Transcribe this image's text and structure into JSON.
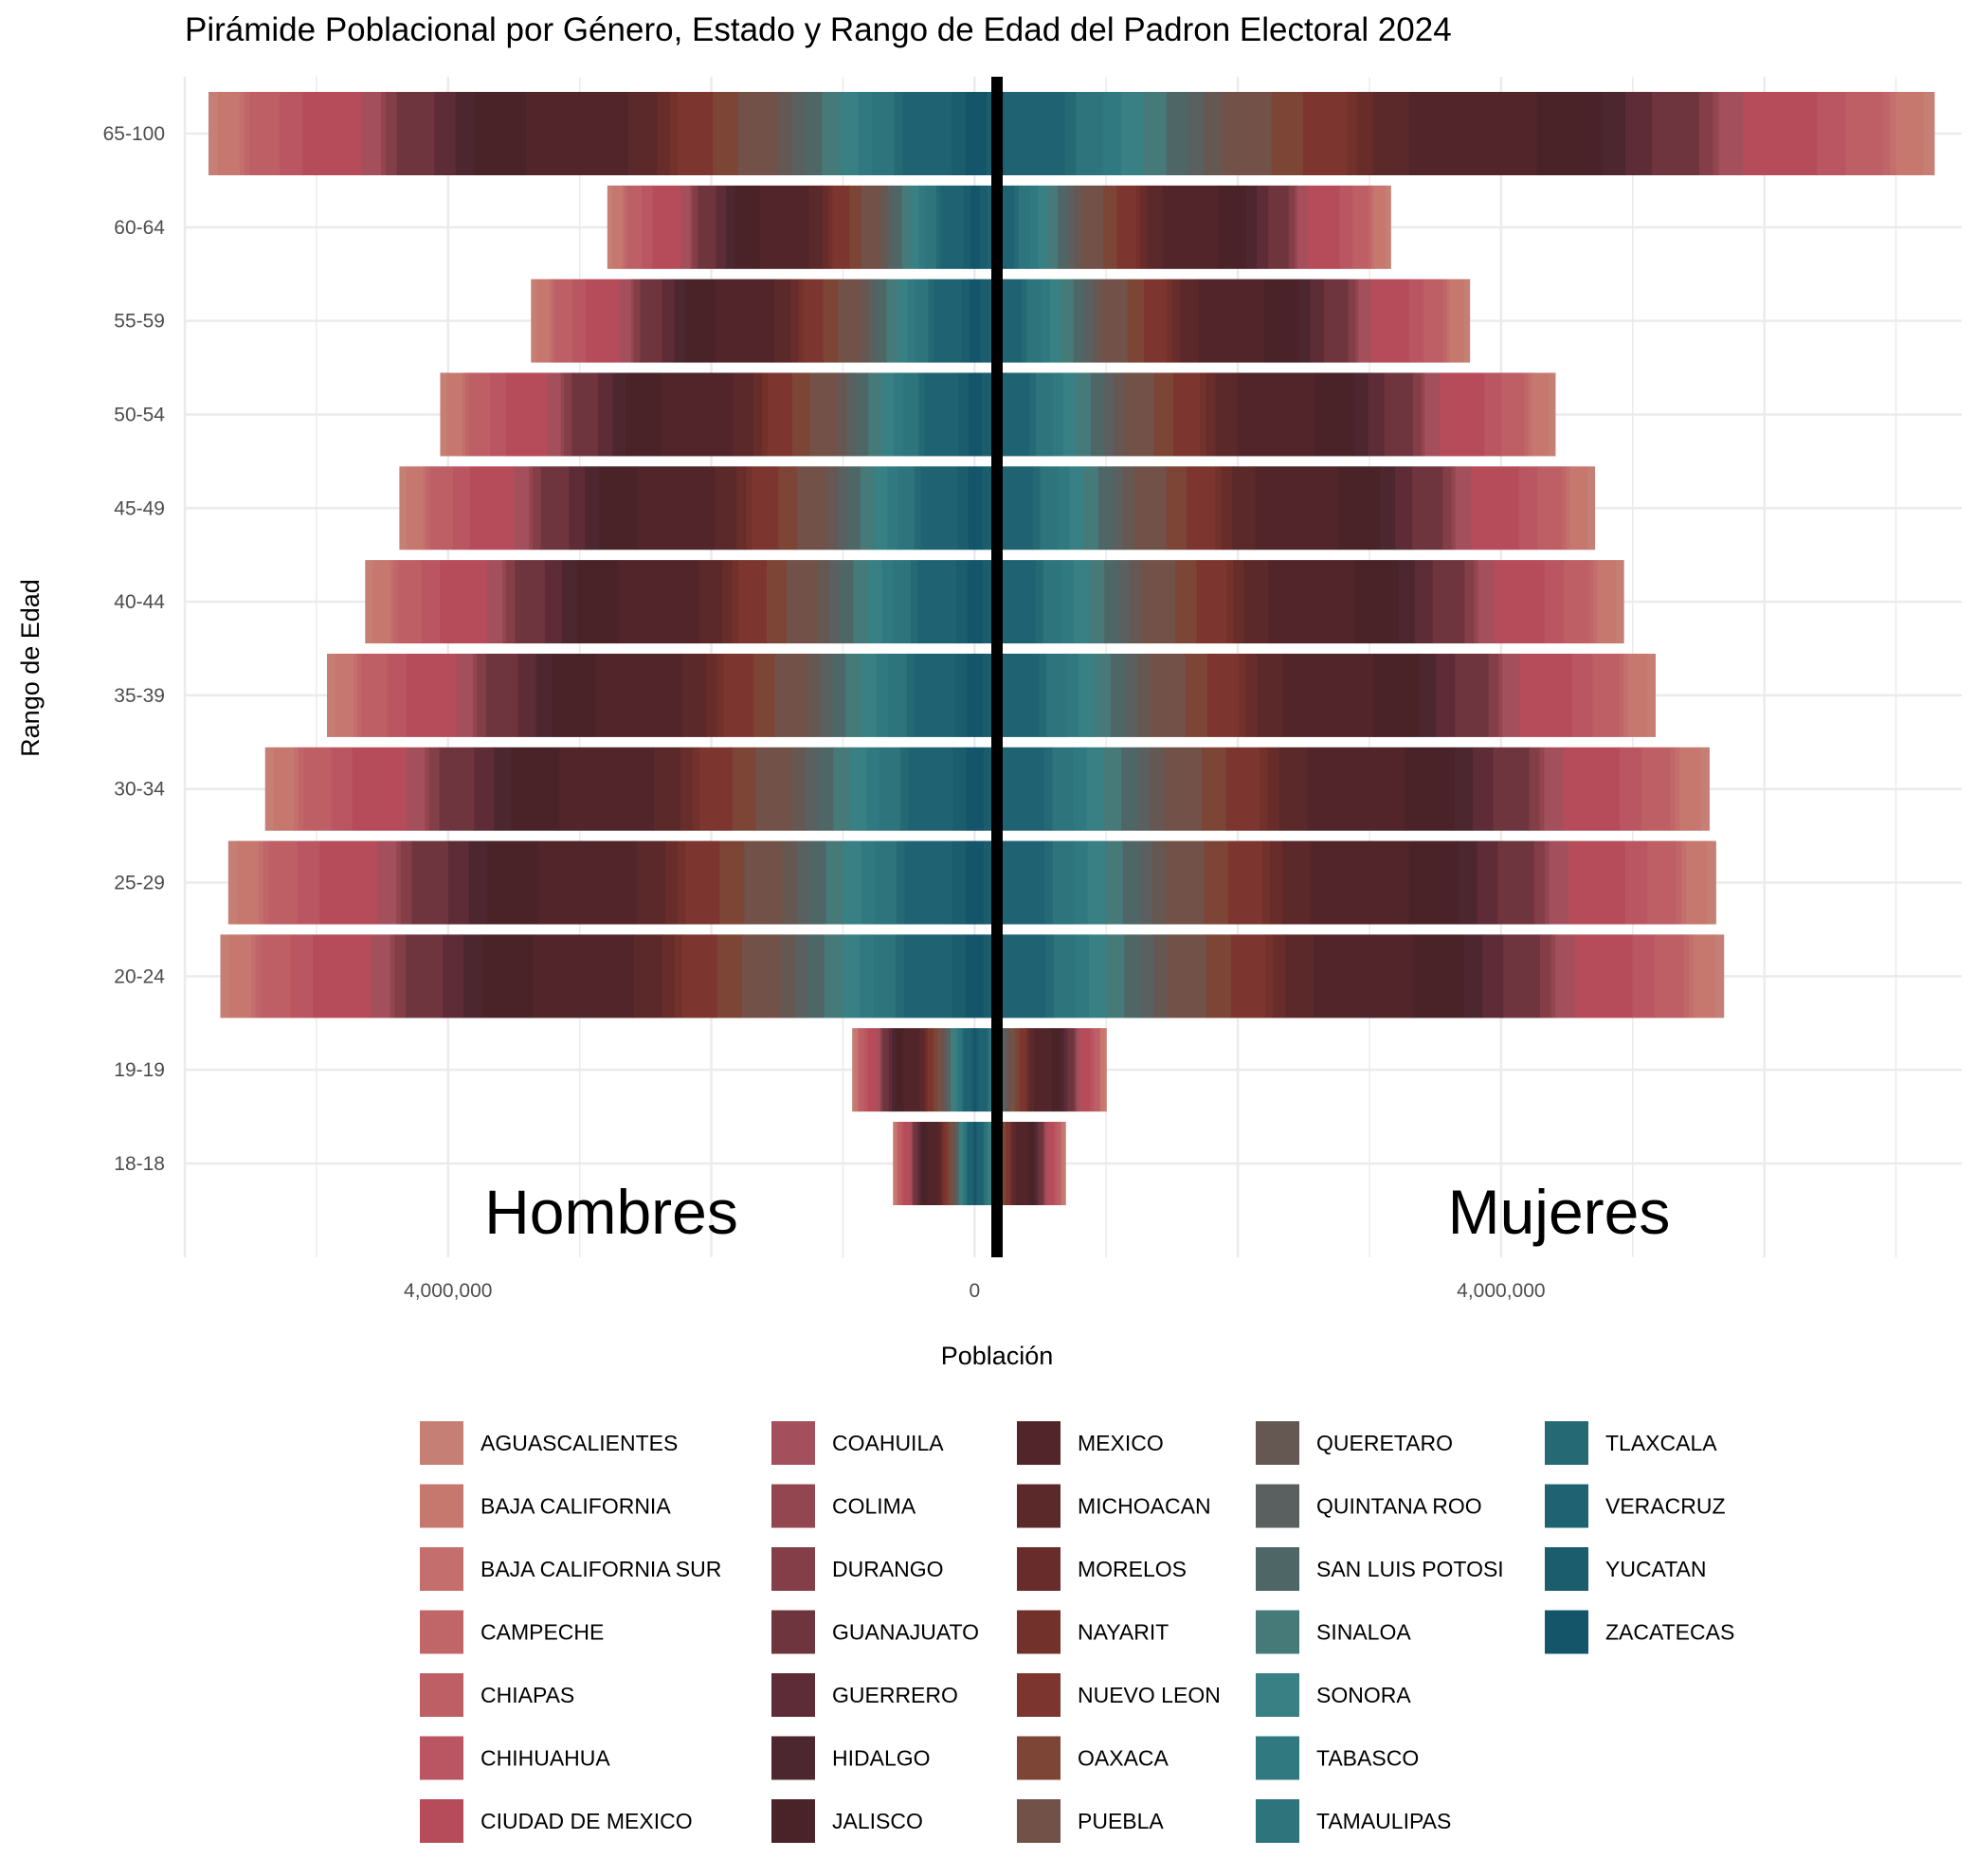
{
  "chart_data": {
    "type": "bar",
    "orientation": "horizontal",
    "stacked": true,
    "title": "Pirámide Poblacional por Género, Estado y Rango de Edad del Padron Electoral 2024",
    "xlabel": "Población",
    "ylabel": "Rango de Edad",
    "left_label": "Hombres",
    "right_label": "Mujeres",
    "xlim": [
      -6000000,
      7500000
    ],
    "x_ticks": [
      {
        "value": -4000000,
        "label": "4,000,000"
      },
      {
        "value": 0,
        "label": "0"
      },
      {
        "value": 4000000,
        "label": "4,000,000"
      }
    ],
    "categories": [
      "18-18",
      "19-19",
      "20-24",
      "25-29",
      "30-34",
      "35-39",
      "40-44",
      "45-49",
      "50-54",
      "55-59",
      "60-64",
      "65-100"
    ],
    "totals": {
      "hombres": [
        620000,
        930000,
        5730000,
        5670000,
        5390000,
        4920000,
        4630000,
        4370000,
        4060000,
        3370000,
        2790000,
        5820000
      ],
      "mujeres": [
        690000,
        1000000,
        5690000,
        5630000,
        5580000,
        5170000,
        4930000,
        4710000,
        4410000,
        3760000,
        3160000,
        7290000
      ]
    },
    "states": [
      "AGUASCALIENTES",
      "BAJA CALIFORNIA",
      "BAJA CALIFORNIA SUR",
      "CAMPECHE",
      "CHIAPAS",
      "CHIHUAHUA",
      "CIUDAD DE MEXICO",
      "COAHUILA",
      "COLIMA",
      "DURANGO",
      "GUANAJUATO",
      "GUERRERO",
      "HIDALGO",
      "JALISCO",
      "MEXICO",
      "MICHOACAN",
      "MORELOS",
      "NAYARIT",
      "NUEVO LEON",
      "OAXACA",
      "PUEBLA",
      "QUERETARO",
      "QUINTANA ROO",
      "SAN LUIS POTOSI",
      "SINALOA",
      "SONORA",
      "TABASCO",
      "TAMAULIPAS",
      "TLAXCALA",
      "VERACRUZ",
      "YUCATAN",
      "ZACATECAS"
    ],
    "colors": [
      "#c67f74",
      "#c6786f",
      "#c46f6d",
      "#c06668",
      "#bd5f65",
      "#ba5661",
      "#b64c5a",
      "#a4505c",
      "#934650",
      "#843e48",
      "#6f353e",
      "#5e2c37",
      "#4d2730",
      "#4a2329",
      "#51252a",
      "#5c292a",
      "#682d2b",
      "#73312b",
      "#7c362f",
      "#7d4536",
      "#725148",
      "#655852",
      "#5a605f",
      "#4f6667",
      "#467a79",
      "#388083",
      "#317981",
      "#2d747d",
      "#246974",
      "#1f6372",
      "#1b5c6d",
      "#14556a"
    ],
    "state_shares": [
      0.011,
      0.028,
      0.006,
      0.007,
      0.038,
      0.029,
      0.075,
      0.025,
      0.006,
      0.014,
      0.048,
      0.027,
      0.024,
      0.066,
      0.13,
      0.037,
      0.016,
      0.01,
      0.045,
      0.032,
      0.05,
      0.019,
      0.016,
      0.022,
      0.023,
      0.023,
      0.018,
      0.028,
      0.011,
      0.062,
      0.018,
      0.012
    ],
    "grid": true,
    "legend": {
      "position": "bottom",
      "columns": 5
    }
  }
}
